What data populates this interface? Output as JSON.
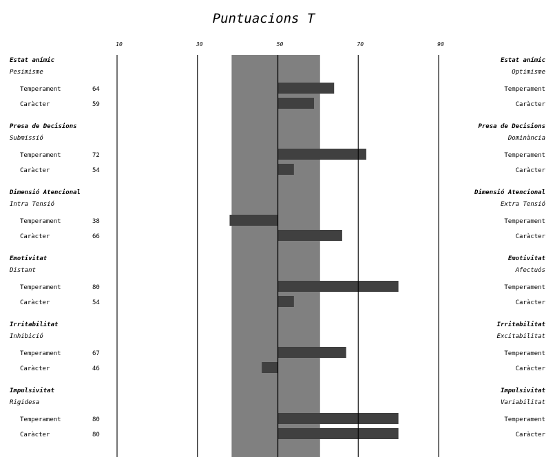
{
  "chart_data": {
    "type": "bar",
    "title": "Puntuacions T",
    "x_ticks": [
      10,
      30,
      50,
      70,
      90
    ],
    "xlim": [
      10,
      90
    ],
    "baseline": 50,
    "band": [
      38.5,
      60.5
    ],
    "colors": {
      "bar": "#404040",
      "band": "#808080",
      "axis": "#000000"
    },
    "dimensions": [
      {
        "left_title": "Estat anímic",
        "left_sub": "Pesimisme",
        "right_title": "Estat anímic",
        "right_sub": "Optimisme",
        "rows": [
          {
            "label": "Temperament",
            "right_label": "Temperament",
            "value": 64
          },
          {
            "label": "Caràcter",
            "right_label": "Caràcter",
            "value": 59
          }
        ]
      },
      {
        "left_title": "Presa de Decisions",
        "left_sub": "Submissió",
        "right_title": "Presa de Decisions",
        "right_sub": "Dominància",
        "rows": [
          {
            "label": "Temperament",
            "right_label": "Temperament",
            "value": 72
          },
          {
            "label": "Caràcter",
            "right_label": "Caràcter",
            "value": 54
          }
        ]
      },
      {
        "left_title": "Dimensió Atencional",
        "left_sub": "Intra Tensió",
        "right_title": "Dimensió Atencional",
        "right_sub": "Extra Tensió",
        "rows": [
          {
            "label": "Temperament",
            "right_label": "Temperament",
            "value": 38
          },
          {
            "label": "Caràcter",
            "right_label": "Caràcter",
            "value": 66
          }
        ]
      },
      {
        "left_title": "Emotivitat",
        "left_sub": "Distant",
        "right_title": "Emotivitat",
        "right_sub": "Afectuós",
        "rows": [
          {
            "label": "Temperament",
            "right_label": "Temperament",
            "value": 80
          },
          {
            "label": "Caràcter",
            "right_label": "Caràcter",
            "value": 54
          }
        ]
      },
      {
        "left_title": "Irritabilitat",
        "left_sub": "Inhibició",
        "right_title": "Irritabilitat",
        "right_sub": "Excitabilitat",
        "rows": [
          {
            "label": "Temperament",
            "right_label": "Temperament",
            "value": 67
          },
          {
            "label": "Caràcter",
            "right_label": "Caràcter",
            "value": 46
          }
        ]
      },
      {
        "left_title": "Impulsivitat",
        "left_sub": "Rigidesa",
        "right_title": "Impulsivitat",
        "right_sub": "Variabilitat",
        "rows": [
          {
            "label": "Temperament",
            "right_label": "Temperament",
            "value": 80
          },
          {
            "label": "Caràcter",
            "right_label": "Caràcter",
            "value": 80
          }
        ]
      }
    ]
  }
}
